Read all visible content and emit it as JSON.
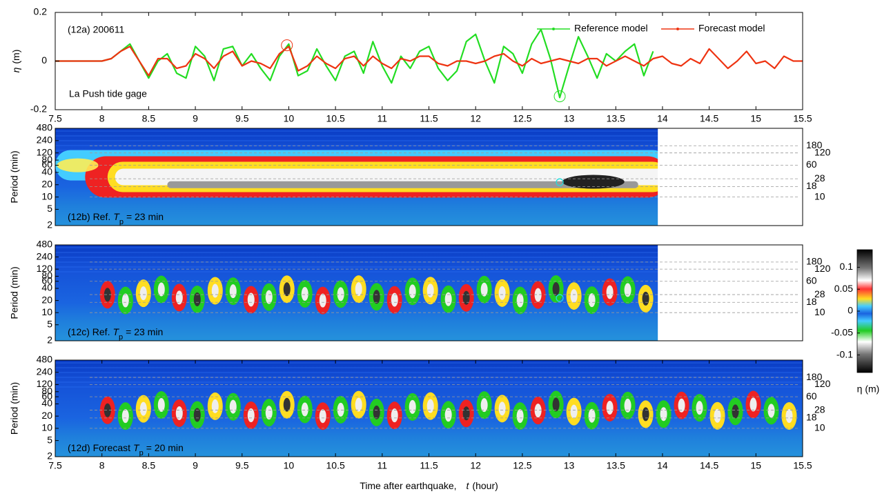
{
  "chart_data": [
    {
      "type": "line",
      "title": "(12a) 200611",
      "annotation": "La Push tide gage",
      "ylabel_symbol": "η",
      "ylabel_unit": "(m)",
      "x": [
        7.5,
        7.6,
        7.7,
        7.8,
        7.9,
        8.0,
        8.1,
        8.2,
        8.3,
        8.4,
        8.5,
        8.6,
        8.7,
        8.8,
        8.9,
        9.0,
        9.1,
        9.2,
        9.3,
        9.4,
        9.5,
        9.6,
        9.7,
        9.8,
        9.9,
        10.0,
        10.1,
        10.2,
        10.3,
        10.4,
        10.5,
        10.6,
        10.7,
        10.8,
        10.9,
        11.0,
        11.1,
        11.2,
        11.3,
        11.4,
        11.5,
        11.6,
        11.7,
        11.8,
        11.9,
        12.0,
        12.1,
        12.2,
        12.3,
        12.4,
        12.5,
        12.6,
        12.7,
        12.8,
        12.9,
        13.0,
        13.1,
        13.2,
        13.3,
        13.4,
        13.5,
        13.6,
        13.7,
        13.8,
        13.9,
        14.0,
        14.1,
        14.2,
        14.3,
        14.4,
        14.5,
        14.6,
        14.7,
        14.8,
        14.9,
        15.0,
        15.1,
        15.2,
        15.3,
        15.4,
        15.5
      ],
      "series": [
        {
          "name": "Reference model",
          "color": "#22dd22",
          "values": [
            0,
            0,
            0,
            0,
            0,
            0,
            0.01,
            0.04,
            0.07,
            0.0,
            -0.07,
            0.0,
            0.03,
            -0.05,
            -0.07,
            0.06,
            0.02,
            -0.08,
            0.05,
            0.06,
            -0.02,
            0.03,
            -0.03,
            -0.08,
            0.02,
            0.07,
            -0.06,
            -0.04,
            0.05,
            -0.02,
            -0.08,
            0.02,
            0.04,
            -0.05,
            0.08,
            -0.02,
            -0.09,
            0.02,
            -0.03,
            0.04,
            0.06,
            -0.03,
            -0.08,
            -0.04,
            0.08,
            0.11,
            0.0,
            -0.09,
            0.06,
            0.03,
            -0.05,
            0.07,
            0.13,
            0.01,
            -0.15,
            -0.02,
            0.1,
            0.02,
            -0.07,
            0.03,
            0.0,
            0.04,
            0.07,
            -0.06,
            0.04,
            null,
            null,
            null,
            null,
            null,
            null,
            null,
            null,
            null,
            null,
            null,
            null,
            null,
            null,
            null,
            null
          ]
        },
        {
          "name": "Forecast model",
          "color": "#ee3311",
          "values": [
            0,
            0,
            0,
            0,
            0,
            0,
            0.01,
            0.04,
            0.06,
            0.0,
            -0.06,
            0.01,
            0.01,
            -0.03,
            -0.02,
            0.03,
            0.01,
            -0.03,
            0.02,
            0.04,
            -0.02,
            0.0,
            -0.01,
            -0.03,
            0.03,
            0.06,
            -0.04,
            -0.02,
            0.02,
            -0.01,
            -0.03,
            0.01,
            0.02,
            -0.02,
            0.02,
            -0.01,
            -0.03,
            0.01,
            0.0,
            0.02,
            0.02,
            -0.01,
            -0.02,
            0.0,
            0.0,
            -0.01,
            0.0,
            0.02,
            0.03,
            0.0,
            -0.02,
            0.01,
            -0.01,
            0.0,
            0.01,
            0.0,
            -0.01,
            0.01,
            0.01,
            -0.02,
            0.0,
            0.02,
            0.0,
            -0.02,
            0.01,
            0.02,
            -0.01,
            -0.02,
            0.01,
            -0.01,
            0.05,
            0.01,
            -0.03,
            0.0,
            0.04,
            -0.01,
            0.0,
            -0.03,
            0.02,
            0.0,
            0.0
          ]
        }
      ],
      "xlim": [
        7.5,
        15.5
      ],
      "xticks": [
        7.5,
        8,
        8.5,
        9,
        9.5,
        10,
        10.5,
        11,
        11.5,
        12,
        12.5,
        13,
        13.5,
        14,
        14.5,
        15,
        15.5
      ],
      "ylim": [
        -0.2,
        0.2
      ],
      "yticks": [
        -0.2,
        0,
        0.2
      ],
      "highlights": [
        {
          "x": 9.98,
          "y": 0.065,
          "color": "#ee3311"
        },
        {
          "x": 12.9,
          "y": -0.145,
          "color": "#22dd22"
        }
      ],
      "legend": "upper right"
    },
    {
      "type": "wavelet",
      "label": {
        "prefix": "(12b) Ref.",
        "symbol": "T",
        "subscript": "p",
        "suffix": "=  23 min"
      },
      "ylabel": "Period (min)",
      "ylim": [
        2,
        480
      ],
      "yticks": [
        2,
        5,
        10,
        20,
        40,
        60,
        80,
        120,
        240,
        480
      ],
      "log_y": true,
      "xlim": [
        7.5,
        15.5
      ],
      "data_end": 13.95,
      "ref_periods": [
        180,
        120,
        60,
        28,
        18,
        10
      ],
      "pattern": "envelope",
      "marker": {
        "x": 12.9,
        "period": 23,
        "color": "#22dddd"
      }
    },
    {
      "type": "wavelet",
      "label": {
        "prefix": "(12c) Ref.",
        "symbol": "T",
        "subscript": "p",
        "suffix": "=  23 min"
      },
      "ylabel": "Period (min)",
      "ylim": [
        2,
        480
      ],
      "yticks": [
        2,
        5,
        10,
        20,
        40,
        60,
        80,
        120,
        240,
        480
      ],
      "log_y": true,
      "xlim": [
        7.5,
        15.5
      ],
      "data_end": 13.95,
      "ref_periods": [
        180,
        120,
        60,
        28,
        18,
        10
      ],
      "pattern": "oscillation",
      "marker": {
        "x": 12.9,
        "period": 23,
        "color": "#22dddd"
      },
      "colorbar": {
        "label": "η (m)",
        "lim": [
          -0.14,
          0.14
        ],
        "ticks": [
          -0.1,
          -0.05,
          0,
          0.05,
          0.1
        ]
      }
    },
    {
      "type": "wavelet",
      "label": {
        "prefix": "(12d) Forecast",
        "symbol": "T",
        "subscript": "p",
        "suffix": "=  20 min"
      },
      "ylabel": "Period (min)",
      "ylim": [
        2,
        480
      ],
      "yticks": [
        2,
        5,
        10,
        20,
        40,
        60,
        80,
        120,
        240,
        480
      ],
      "log_y": true,
      "xlim": [
        7.5,
        15.5
      ],
      "ref_periods": [
        180,
        120,
        60,
        28,
        18,
        10
      ],
      "pattern": "oscillation",
      "xticks": [
        7.5,
        8,
        8.5,
        9,
        9.5,
        10,
        10.5,
        11,
        11.5,
        12,
        12.5,
        13,
        13.5,
        14,
        14.5,
        15,
        15.5
      ],
      "xlabel": {
        "text": "Time after earthquake,",
        "symbol": "t",
        "unit": "(hour)"
      }
    }
  ]
}
